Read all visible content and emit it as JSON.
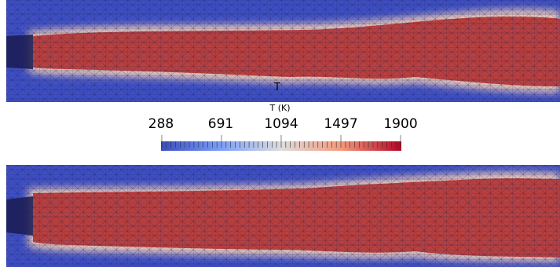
{
  "colorbar": {
    "title": "T (K)",
    "ticks": [
      "288",
      "691",
      "1094",
      "1497",
      "1900"
    ],
    "min": 288,
    "max": 1900,
    "colors": [
      "#3b4cc0",
      "#dddddd",
      "#b40426"
    ]
  },
  "probe_marker": "T",
  "panel_colors": {
    "cold": "#3b4cc0",
    "hot": "#b8403e",
    "edge": "#1e1e6e"
  }
}
